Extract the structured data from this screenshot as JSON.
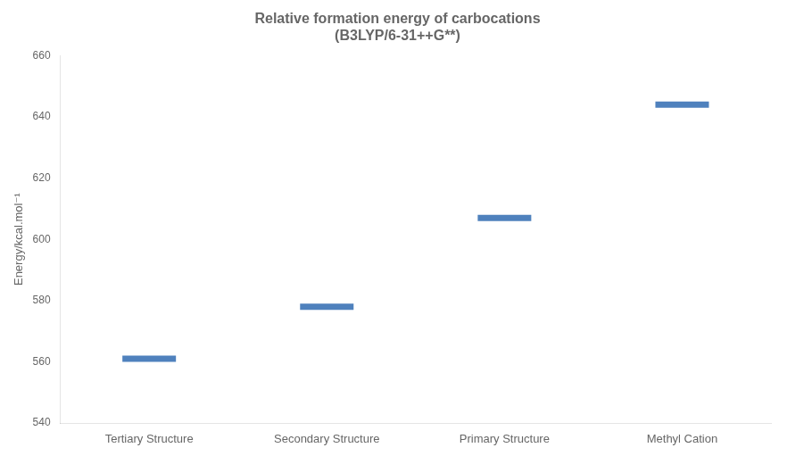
{
  "chart_data": {
    "type": "scatter",
    "title": "Relative formation energy of carbocations",
    "subtitle": "(B3LYP/6-31++G**)",
    "y_label": "Energy/kcal.mol⁻¹",
    "categories": [
      "Tertiary Structure",
      "Secondary Structure",
      "Primary Structure",
      "Methyl Cation"
    ],
    "values": [
      561,
      578,
      607,
      644
    ],
    "color": "#4F81BD",
    "marker": "dash",
    "ylim": [
      540,
      660
    ],
    "yticks": [
      540,
      560,
      580,
      600,
      620,
      640,
      660
    ],
    "grid": false
  }
}
